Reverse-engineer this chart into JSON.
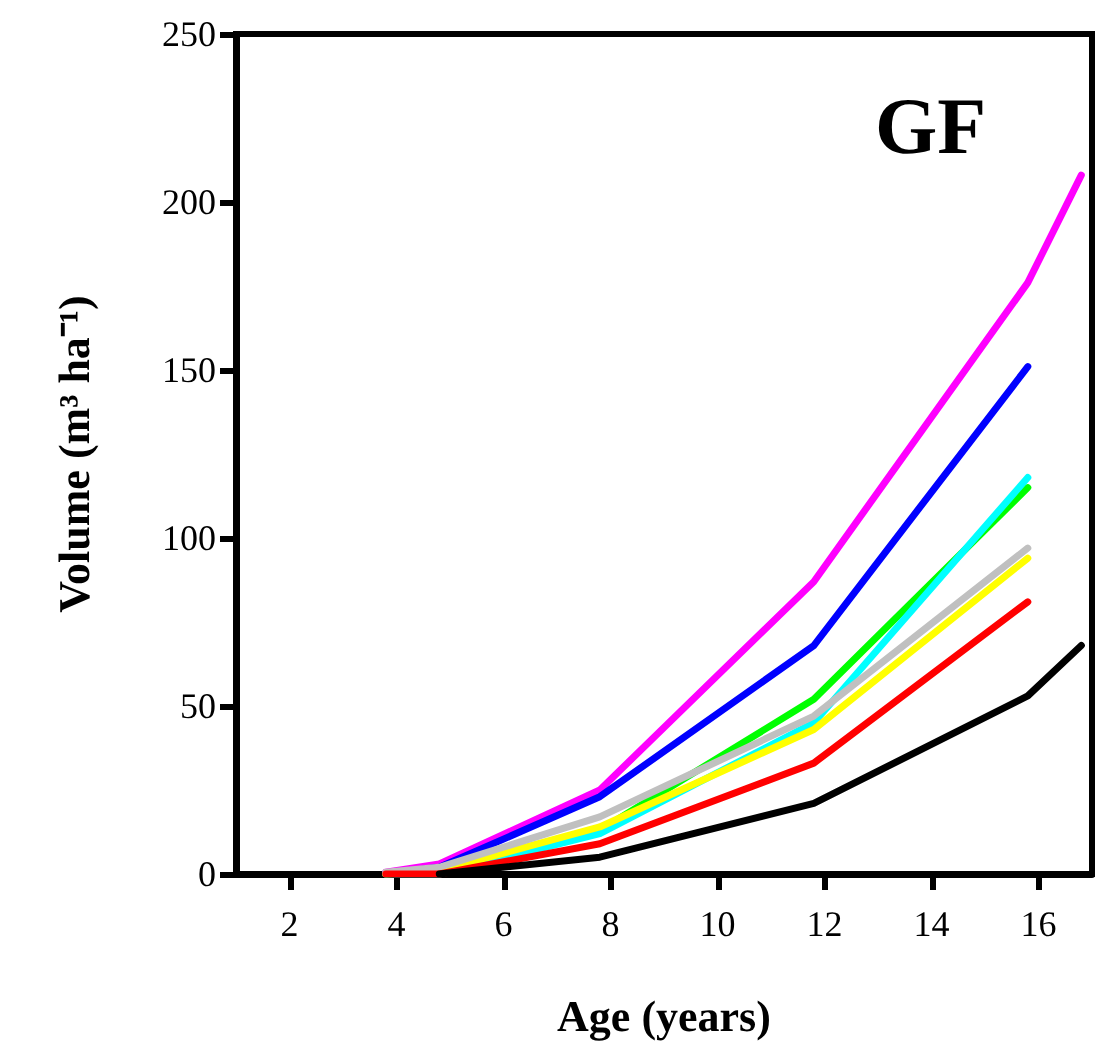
{
  "chart_data": {
    "type": "line",
    "title": "GF",
    "xlabel": "Age (years)",
    "ylabel": "Volume (m³ ha⁻¹)",
    "xlim": [
      1,
      17
    ],
    "xticks": [
      2,
      4,
      6,
      8,
      10,
      12,
      14,
      16
    ],
    "ylim": [
      0,
      250
    ],
    "yticks": [
      0,
      50,
      100,
      150,
      200,
      250
    ],
    "grid": false,
    "marker": "none",
    "line_style": "solid",
    "series": [
      {
        "color": "#ff00ff",
        "x": [
          3.8,
          4.8,
          7.8,
          11.8,
          15.8,
          16.8
        ],
        "values": [
          0.5,
          3,
          25,
          87,
          176,
          208
        ]
      },
      {
        "color": "#0000ff",
        "x": [
          3.8,
          4.8,
          7.8,
          11.8,
          15.8
        ],
        "values": [
          0,
          2,
          23,
          68,
          151
        ]
      },
      {
        "color": "#00ff00",
        "x": [
          3.8,
          4.8,
          7.8,
          11.8,
          15.8
        ],
        "values": [
          0,
          1,
          13,
          52,
          115
        ]
      },
      {
        "color": "#00ffff",
        "x": [
          3.8,
          4.8,
          7.8,
          11.8,
          15.8
        ],
        "values": [
          0,
          0,
          12,
          45,
          118
        ]
      },
      {
        "color": "#ffff00",
        "x": [
          3.8,
          4.8,
          7.8,
          11.8,
          15.8
        ],
        "values": [
          0,
          1,
          14,
          43,
          94
        ]
      },
      {
        "color": "#c0c0c0",
        "x": [
          3.8,
          4.8,
          7.8,
          11.8,
          15.8
        ],
        "values": [
          0.5,
          2,
          17,
          47,
          97
        ]
      },
      {
        "color": "#ff0000",
        "x": [
          3.8,
          4.8,
          7.8,
          11.8,
          15.8
        ],
        "values": [
          0,
          0,
          9,
          33,
          81
        ]
      },
      {
        "color": "#000000",
        "x": [
          4.8,
          7.8,
          11.8,
          15.8,
          16.8
        ],
        "values": [
          0,
          5,
          21,
          53,
          68
        ]
      }
    ]
  }
}
